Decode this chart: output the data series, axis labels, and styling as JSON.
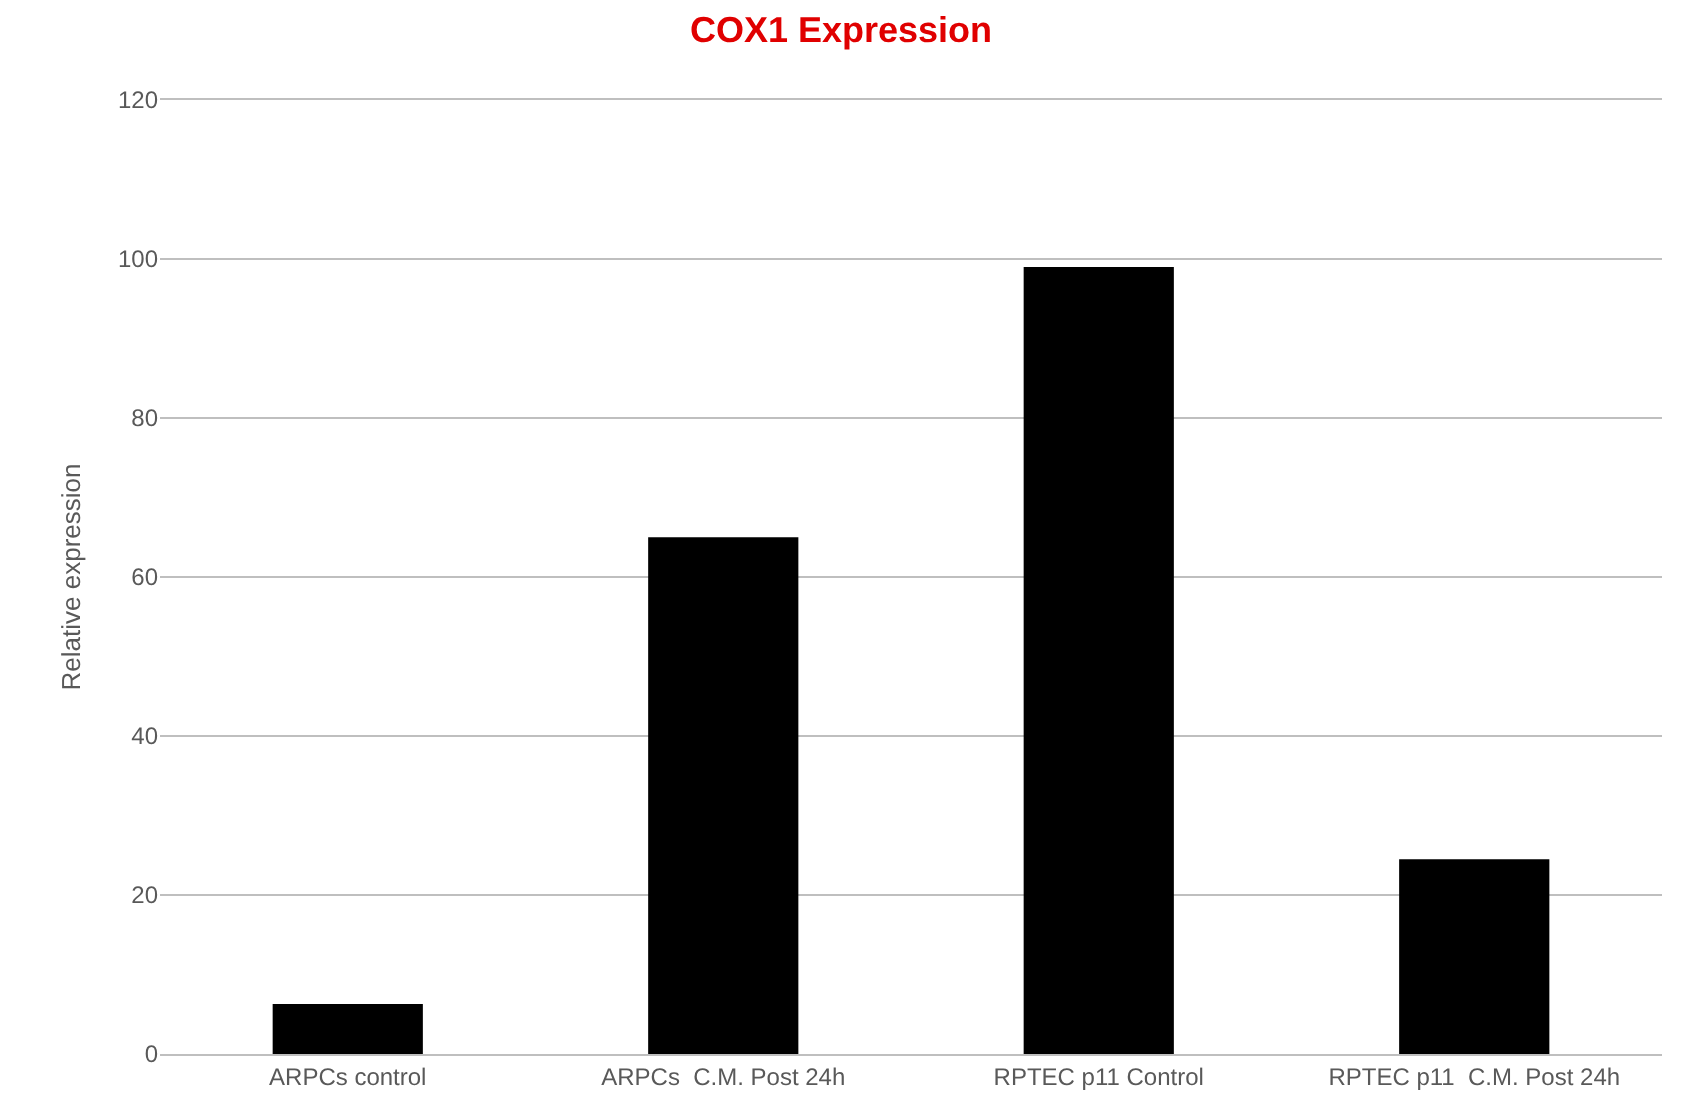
{
  "chart_data": {
    "type": "bar",
    "title": "COX1 Expression",
    "ylabel": "Relative expression",
    "categories": [
      "ARPCs control",
      "ARPCs  C.M. Post 24h",
      "RPTEC p11 Control",
      "RPTEC p11  C.M. Post 24h"
    ],
    "values": [
      6.3,
      65,
      99,
      24.5
    ],
    "color": "#000000",
    "ylim": [
      0,
      120
    ],
    "yticks": [
      0,
      20,
      40,
      60,
      80,
      100,
      120
    ],
    "grid": "y"
  }
}
